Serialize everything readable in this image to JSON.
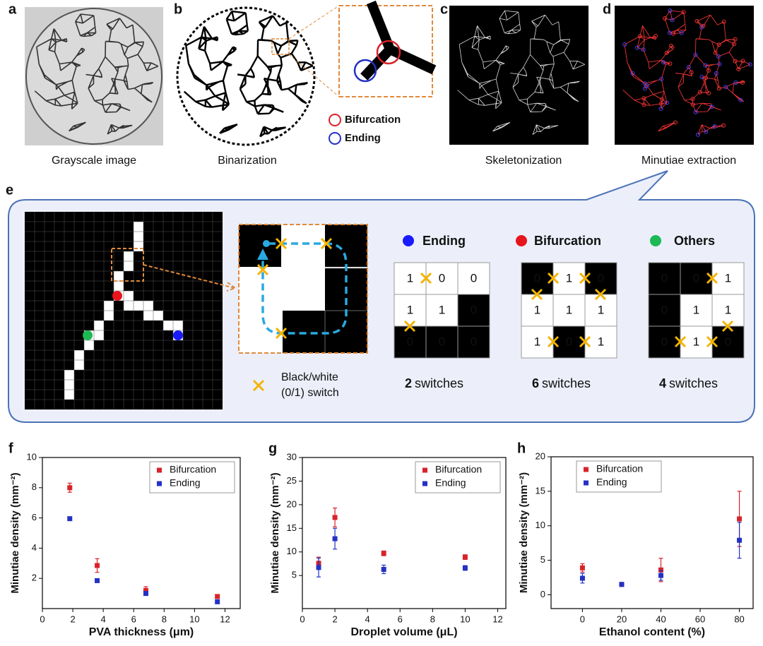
{
  "top_panels": [
    {
      "label": "a",
      "caption": "Grayscale image"
    },
    {
      "label": "b",
      "caption": "Binarization"
    },
    {
      "label": "c",
      "caption": "Skeletonization"
    },
    {
      "label": "d",
      "caption": "Minutiae extraction"
    }
  ],
  "inset_legend": [
    "Bifurcation",
    "Ending"
  ],
  "panel_e": {
    "label": "e",
    "switch_legend": [
      "Black/white",
      "(0/1) switch"
    ],
    "examples": [
      {
        "name": "Ending",
        "cells": [
          [
            1,
            0,
            0
          ],
          [
            1,
            1,
            0
          ],
          [
            0,
            0,
            0
          ]
        ],
        "count": 2,
        "unit": "switches"
      },
      {
        "name": "Bifurcation",
        "cells": [
          [
            0,
            1,
            0
          ],
          [
            1,
            1,
            1
          ],
          [
            1,
            0,
            1
          ]
        ],
        "count": 6,
        "unit": "switches"
      },
      {
        "name": "Others",
        "cells": [
          [
            0,
            0,
            1
          ],
          [
            0,
            1,
            1
          ],
          [
            0,
            1,
            0
          ]
        ],
        "count": 4,
        "unit": "switches"
      }
    ]
  },
  "chart_data": [
    {
      "type": "scatter",
      "label": "f",
      "xlabel": "PVA thickness (μm)",
      "ylabel": "Minutiae density (mm⁻²)",
      "xlim": [
        0,
        13
      ],
      "xticks": [
        0,
        2,
        4,
        6,
        8,
        10,
        12
      ],
      "ylim": [
        0,
        10
      ],
      "yticks": [
        2,
        4,
        6,
        8,
        10
      ],
      "legend": "upper right",
      "series": [
        {
          "name": "Bifurcation",
          "color": "#d8232a",
          "x": [
            1.8,
            3.6,
            6.8,
            11.5
          ],
          "values": [
            8.0,
            2.85,
            1.2,
            0.8
          ],
          "errors": [
            0.3,
            0.45,
            0.25,
            0.1
          ]
        },
        {
          "name": "Ending",
          "color": "#2431c4",
          "x": [
            1.8,
            3.6,
            6.8,
            11.5
          ],
          "values": [
            5.95,
            1.85,
            1.0,
            0.45
          ],
          "errors": [
            0.05,
            0.05,
            0.1,
            0.05
          ]
        }
      ]
    },
    {
      "type": "scatter",
      "label": "g",
      "xlabel": "Droplet volume (μL)",
      "ylabel": "Minutiae density (mm⁻²)",
      "xlim": [
        0,
        12.5
      ],
      "xticks": [
        0,
        2,
        4,
        6,
        8,
        10,
        12
      ],
      "ylim": [
        -2,
        30
      ],
      "yticks": [
        5,
        10,
        15,
        20,
        25,
        30
      ],
      "legend": "upper right",
      "series": [
        {
          "name": "Bifurcation",
          "color": "#d8232a",
          "x": [
            1,
            2,
            5,
            10
          ],
          "values": [
            7.6,
            17.3,
            9.7,
            8.9
          ],
          "errors": [
            1.3,
            2.0,
            0.5,
            0.5
          ]
        },
        {
          "name": "Ending",
          "color": "#2431c4",
          "x": [
            1,
            2,
            5,
            10
          ],
          "values": [
            6.7,
            12.8,
            6.3,
            6.6
          ],
          "errors": [
            2.0,
            2.2,
            0.9,
            0.5
          ]
        }
      ]
    },
    {
      "type": "scatter",
      "label": "h",
      "xlabel": "Ethanol content (%)",
      "ylabel": "Minutiae density (mm⁻²)",
      "xlim": [
        -16,
        87
      ],
      "xticks": [
        0,
        20,
        40,
        60,
        80
      ],
      "ylim": [
        -2,
        20
      ],
      "yticks": [
        0,
        5,
        10,
        15,
        20
      ],
      "legend": "upper left",
      "series": [
        {
          "name": "Bifurcation",
          "color": "#d8232a",
          "x": [
            0,
            20,
            40,
            80
          ],
          "values": [
            3.9,
            1.5,
            3.6,
            11.0
          ],
          "errors": [
            0.6,
            0.2,
            1.7,
            4.0
          ]
        },
        {
          "name": "Ending",
          "color": "#2431c4",
          "x": [
            0,
            20,
            40,
            80
          ],
          "values": [
            2.4,
            1.5,
            2.8,
            7.9
          ],
          "errors": [
            0.7,
            0.2,
            0.7,
            2.6
          ]
        }
      ]
    }
  ]
}
